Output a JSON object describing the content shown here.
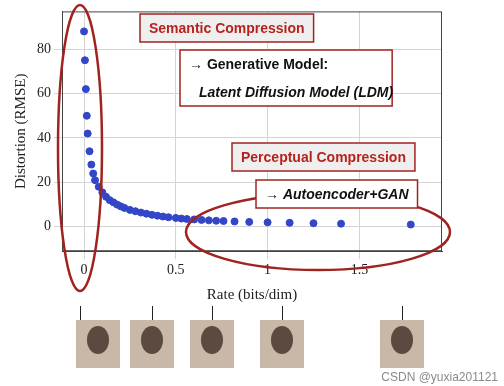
{
  "chart_data": {
    "type": "scatter",
    "xlabel": "Rate (bits/dim)",
    "ylabel": "Distortion (RMSE)",
    "x": [
      0.0,
      0.005,
      0.01,
      0.015,
      0.02,
      0.03,
      0.04,
      0.05,
      0.06,
      0.08,
      0.1,
      0.12,
      0.14,
      0.16,
      0.18,
      0.2,
      0.22,
      0.25,
      0.28,
      0.31,
      0.34,
      0.37,
      0.4,
      0.43,
      0.46,
      0.5,
      0.53,
      0.56,
      0.6,
      0.64,
      0.68,
      0.72,
      0.76,
      0.82,
      0.9,
      1.0,
      1.12,
      1.25,
      1.4,
      1.78
    ],
    "values": [
      88,
      75,
      62,
      50,
      42,
      34,
      28,
      24,
      21,
      18,
      15.5,
      13.5,
      12,
      11,
      10,
      9.2,
      8.5,
      7.6,
      7,
      6.4,
      5.9,
      5.4,
      5,
      4.6,
      4.3,
      4,
      3.7,
      3.5,
      3.3,
      3.1,
      2.9,
      2.7,
      2.6,
      2.4,
      2.2,
      2.0,
      1.8,
      1.6,
      1.4,
      1.0
    ],
    "color": "#3346c8",
    "marker": "circle",
    "xlim": [
      -0.12,
      1.95
    ],
    "ylim": [
      -11,
      97
    ],
    "xticks": [
      0,
      0.5,
      1,
      1.5
    ],
    "yticks": [
      0,
      20,
      40,
      60,
      80
    ],
    "grid": true,
    "annotations": [
      "Semantic Compression",
      "→ Generative Model:",
      "Latent Diffusion Model (LDM)",
      "Perceptual Compression",
      "→ Autoencoder+GAN"
    ],
    "watermark": "CSDN @yuxia201121"
  }
}
